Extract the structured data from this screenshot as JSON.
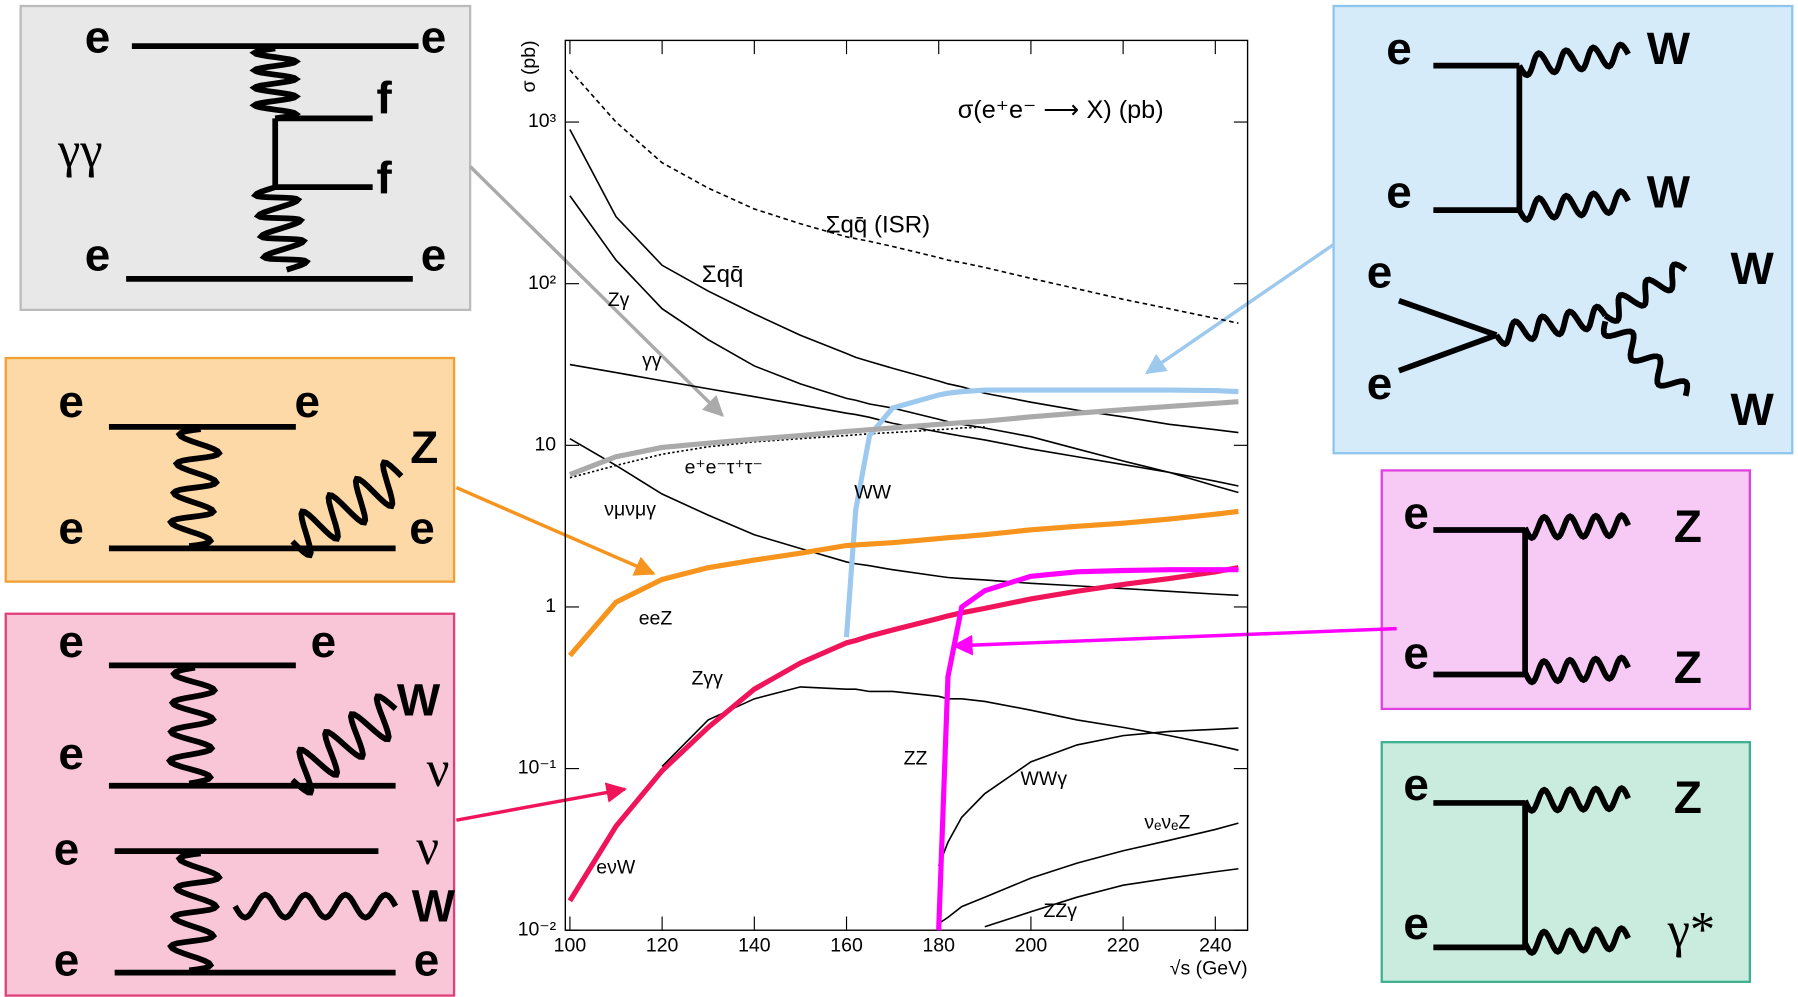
{
  "chart_data": {
    "type": "line",
    "title": "σ(e⁺e⁻ ⟶ X) (pb)",
    "x_label": "√s (GeV)",
    "y_label": "σ (pb)",
    "x": [
      100,
      110,
      120,
      130,
      140,
      150,
      160,
      162,
      165,
      170,
      180,
      182,
      185,
      190,
      200,
      210,
      220,
      230,
      240,
      245
    ],
    "xlim": [
      99,
      247
    ],
    "xticks": [
      100,
      120,
      140,
      160,
      180,
      200,
      220,
      240
    ],
    "ylim": [
      0.01,
      3200
    ],
    "log_y": true,
    "yticks": [
      {
        "value": 0.01,
        "label": "10⁻²"
      },
      {
        "value": 0.1,
        "label": "10⁻¹"
      },
      1,
      10,
      {
        "value": 100,
        "label": "10²"
      },
      {
        "value": 1000,
        "label": "10³"
      }
    ],
    "series": [
      {
        "name": "Σqq̄ (ISR)",
        "color": "#000000",
        "dash": "dashed",
        "values": [
          2100,
          1000,
          560,
          390,
          290,
          235,
          195,
          190,
          183,
          170,
          145,
          140,
          135,
          126,
          108,
          93,
          80,
          70,
          61,
          57
        ]
      },
      {
        "name": "Σqq̄",
        "color": "#000000",
        "values": [
          900,
          260,
          130,
          90,
          65,
          48,
          37,
          35,
          33,
          30,
          25,
          24,
          23,
          21,
          18.5,
          16.5,
          15,
          13.5,
          12.5,
          12
        ]
      },
      {
        "name": "Zγ",
        "color": "#000000",
        "values": [
          350,
          140,
          70,
          45,
          31,
          24,
          19.5,
          19,
          18,
          17,
          14.5,
          14,
          13.5,
          12.8,
          11.3,
          9.5,
          8,
          6.8,
          5.6,
          5.1
        ]
      },
      {
        "name": "γγ",
        "color": "#000000",
        "values": [
          31.6,
          28.2,
          25.1,
          22.4,
          20,
          17.8,
          15.8,
          15.5,
          14.9,
          13.7,
          12.1,
          11.8,
          11.4,
          10.8,
          9.5,
          8.5,
          7.6,
          6.8,
          6.0,
          5.6
        ]
      },
      {
        "name": "e⁺e⁻τ⁺τ⁻",
        "color": "#000000",
        "dash": "dotted",
        "values": [
          6.3,
          7.5,
          8.8,
          9.8,
          10.5,
          11,
          11.5,
          11.6,
          11.8,
          12,
          12.5,
          12.6,
          12.8,
          13,
          null,
          null,
          null,
          null,
          null,
          null
        ]
      },
      {
        "name": "νμνμγ",
        "color": "#000000",
        "values": [
          11,
          7.5,
          5,
          3.7,
          2.8,
          2.3,
          1.9,
          1.85,
          1.8,
          1.7,
          1.55,
          1.52,
          1.5,
          1.47,
          1.4,
          1.35,
          1.3,
          1.25,
          1.2,
          1.18
        ]
      },
      {
        "name": "WW",
        "color": "#9ec9ef",
        "thick": true,
        "values": [
          null,
          null,
          null,
          null,
          null,
          null,
          0.65,
          4,
          11.5,
          17,
          20.5,
          21,
          21.5,
          22,
          22,
          22,
          22,
          22,
          21.8,
          21.5
        ]
      },
      {
        "color": "#aaaaaa",
        "thick": true,
        "values": [
          6.6,
          8.5,
          9.7,
          10.3,
          10.9,
          11.5,
          12.2,
          12.3,
          12.5,
          12.8,
          13.5,
          13.6,
          13.8,
          14.1,
          15,
          15.8,
          16.6,
          17.4,
          18.2,
          18.6
        ]
      },
      {
        "name": "eeZ",
        "color": "#f7941d",
        "thick": true,
        "values": [
          0.5,
          1.07,
          1.48,
          1.75,
          1.95,
          2.15,
          2.4,
          2.42,
          2.45,
          2.5,
          2.65,
          2.68,
          2.72,
          2.8,
          3,
          3.15,
          3.3,
          3.5,
          3.75,
          3.9
        ]
      },
      {
        "name": "eνW",
        "color": "#f0145a",
        "thick": true,
        "values": [
          0.0152,
          0.044,
          0.097,
          0.18,
          0.31,
          0.45,
          0.6,
          0.62,
          0.66,
          0.72,
          0.85,
          0.88,
          0.92,
          0.98,
          1.12,
          1.25,
          1.38,
          1.5,
          1.65,
          1.75
        ]
      },
      {
        "name": "ZZ",
        "color": "#ff00ff",
        "thick": true,
        "values": [
          null,
          null,
          null,
          null,
          null,
          null,
          null,
          null,
          null,
          null,
          0.01,
          0.37,
          1,
          1.26,
          1.55,
          1.65,
          1.68,
          1.7,
          1.7,
          1.7
        ]
      },
      {
        "name": "Zγγ",
        "color": "#000000",
        "values": [
          null,
          null,
          0.103,
          0.2,
          0.27,
          0.32,
          0.31,
          0.31,
          0.3,
          0.3,
          0.28,
          0.27,
          0.27,
          0.26,
          0.23,
          0.2,
          0.18,
          0.16,
          0.14,
          0.13
        ]
      },
      {
        "name": "WWγ",
        "color": "#000000",
        "values": [
          null,
          null,
          null,
          null,
          null,
          null,
          null,
          null,
          null,
          null,
          0.025,
          0.035,
          0.05,
          0.07,
          0.11,
          0.14,
          0.16,
          0.17,
          0.175,
          0.178
        ]
      },
      {
        "name": "νₑνₑZ",
        "color": "#000000",
        "values": [
          null,
          null,
          null,
          null,
          null,
          null,
          null,
          null,
          null,
          null,
          0.011,
          0.012,
          0.014,
          0.016,
          0.021,
          0.026,
          0.031,
          0.036,
          0.042,
          0.046
        ]
      },
      {
        "name": "ZZγ",
        "color": "#000000",
        "values": [
          null,
          null,
          null,
          null,
          null,
          null,
          null,
          null,
          null,
          null,
          null,
          null,
          null,
          0.0105,
          0.013,
          0.016,
          0.019,
          0.021,
          0.023,
          0.024
        ]
      }
    ]
  },
  "diagrams": [
    {
      "labels": [
        "e",
        "e",
        "f",
        "f",
        "γγ",
        "e",
        "e"
      ]
    },
    {
      "labels": [
        "e",
        "e",
        "Z",
        "e",
        "e"
      ]
    },
    {
      "labels": [
        "e",
        "e",
        "W",
        "e",
        "ν",
        "e",
        "ν",
        "W",
        "e",
        "e"
      ]
    },
    {
      "labels": [
        "e",
        "W",
        "e",
        "W",
        "e",
        "W",
        "e",
        "W"
      ]
    },
    {
      "labels": [
        "e",
        "Z",
        "e",
        "Z"
      ]
    },
    {
      "labels": [
        "e",
        "Z",
        "e",
        "γ*"
      ]
    }
  ]
}
